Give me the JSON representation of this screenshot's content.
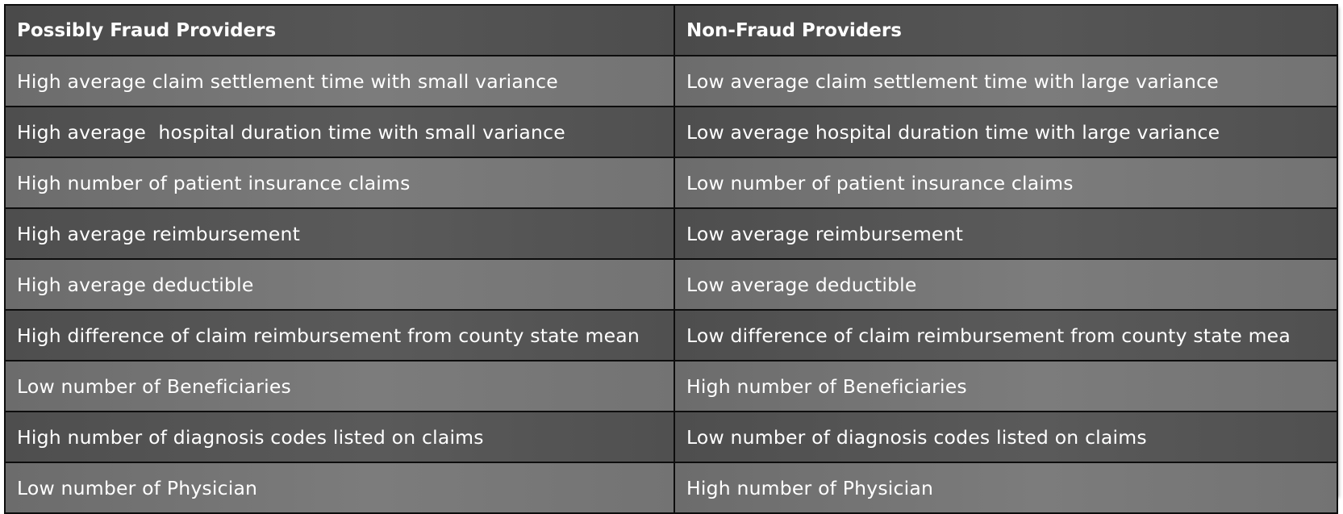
{
  "table": {
    "headers": [
      "Possibly Fraud Providers",
      "Non-Fraud Providers"
    ],
    "rows": [
      [
        "High average claim settlement time with small variance",
        "Low average claim settlement time with large variance"
      ],
      [
        "High average  hospital duration time with small variance",
        "Low average hospital duration time with large variance"
      ],
      [
        "High number of patient insurance claims",
        "Low number of patient insurance claims"
      ],
      [
        "High average reimbursement",
        "Low average reimbursement"
      ],
      [
        "High average deductible",
        "Low average deductible"
      ],
      [
        "High difference of claim reimbursement from county state mean",
        "Low difference of claim reimbursement from county state mea"
      ],
      [
        "Low number of Beneficiaries",
        "High number of Beneficiaries"
      ],
      [
        "High number of diagnosis codes listed on claims",
        "Low number of diagnosis codes listed on claims"
      ],
      [
        "Low number of Physician",
        "High number of Physician"
      ]
    ]
  },
  "colors": {
    "header_bg": "#525252",
    "row_light": "#777777",
    "row_dark": "#555555",
    "border": "#0d0d0d",
    "text": "#ffffff"
  }
}
